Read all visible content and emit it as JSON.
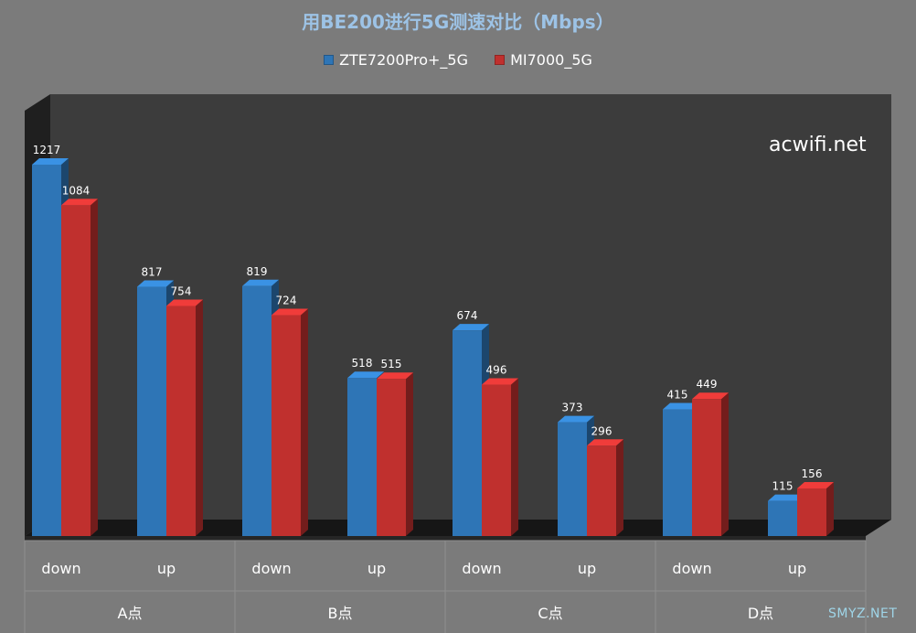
{
  "chart_data": {
    "type": "bar",
    "title": "用BE200进行5G测速对比（Mbps）",
    "categories": [
      "down",
      "up",
      "down",
      "up",
      "down",
      "up",
      "down",
      "up"
    ],
    "groups": [
      "A点",
      "B点",
      "C点",
      "D点"
    ],
    "series": [
      {
        "name": "ZTE7200Pro+_5G",
        "color": "#2e75b6",
        "values": [
          1217,
          817,
          819,
          518,
          674,
          373,
          415,
          115
        ]
      },
      {
        "name": "MI7000_5G",
        "color": "#c0302e",
        "values": [
          1084,
          754,
          724,
          515,
          496,
          296,
          449,
          156
        ]
      }
    ],
    "ylim": [
      0,
      1217
    ],
    "grid": false,
    "legend_position": "top"
  },
  "watermark": "acwifi.net",
  "watermark2": "SMYZ.NET"
}
